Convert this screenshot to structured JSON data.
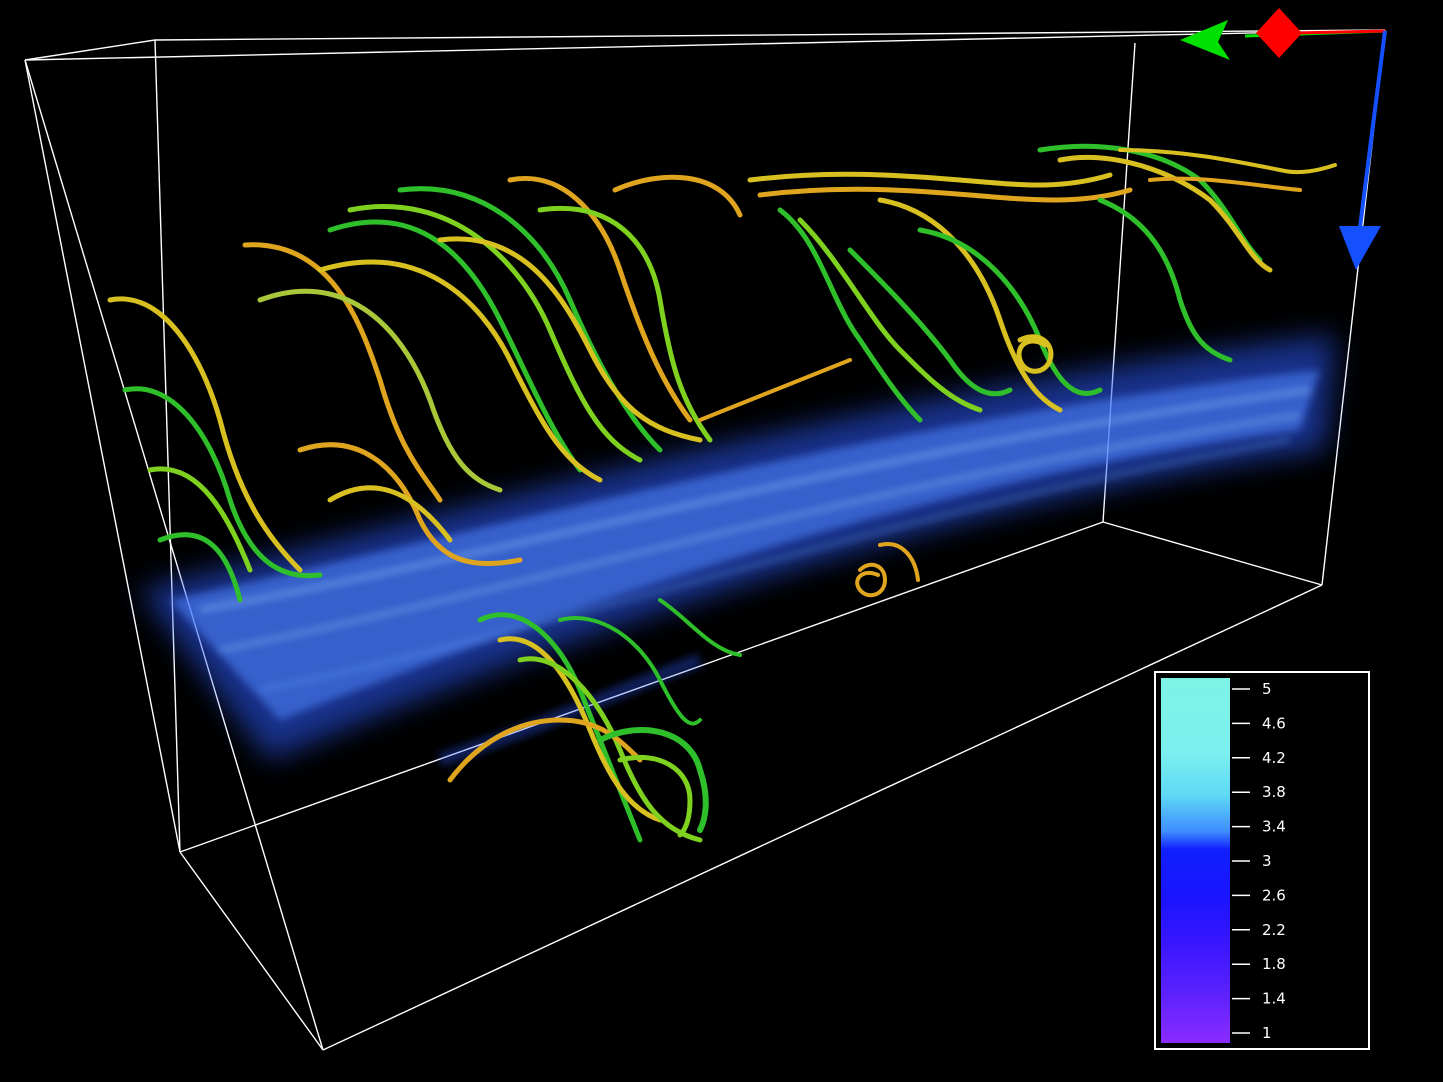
{
  "scene": {
    "background": "#000000",
    "box_color": "#ffffff",
    "volume_color": "#3a66ff",
    "streamline_colors": [
      "#2fbf2a",
      "#7fd11f",
      "#d9c021",
      "#e0a51e",
      "#a8c83a"
    ]
  },
  "axes_gizmo": {
    "x_color": "#ff0000",
    "y_color": "#00e000",
    "z_color": "#1550ff"
  },
  "colorbar": {
    "ticks": [
      "5",
      "4.6",
      "4.2",
      "3.8",
      "3.4",
      "3",
      "2.6",
      "2.2",
      "1.8",
      "1.4",
      "1"
    ],
    "gradient_stops": [
      "#7cf3e6",
      "#7cf0ee",
      "#5fd9f5",
      "#3f8dff",
      "#1020ff",
      "#1a14ff",
      "#3716ff",
      "#5820ff",
      "#7628ff",
      "#8a2cff"
    ]
  }
}
